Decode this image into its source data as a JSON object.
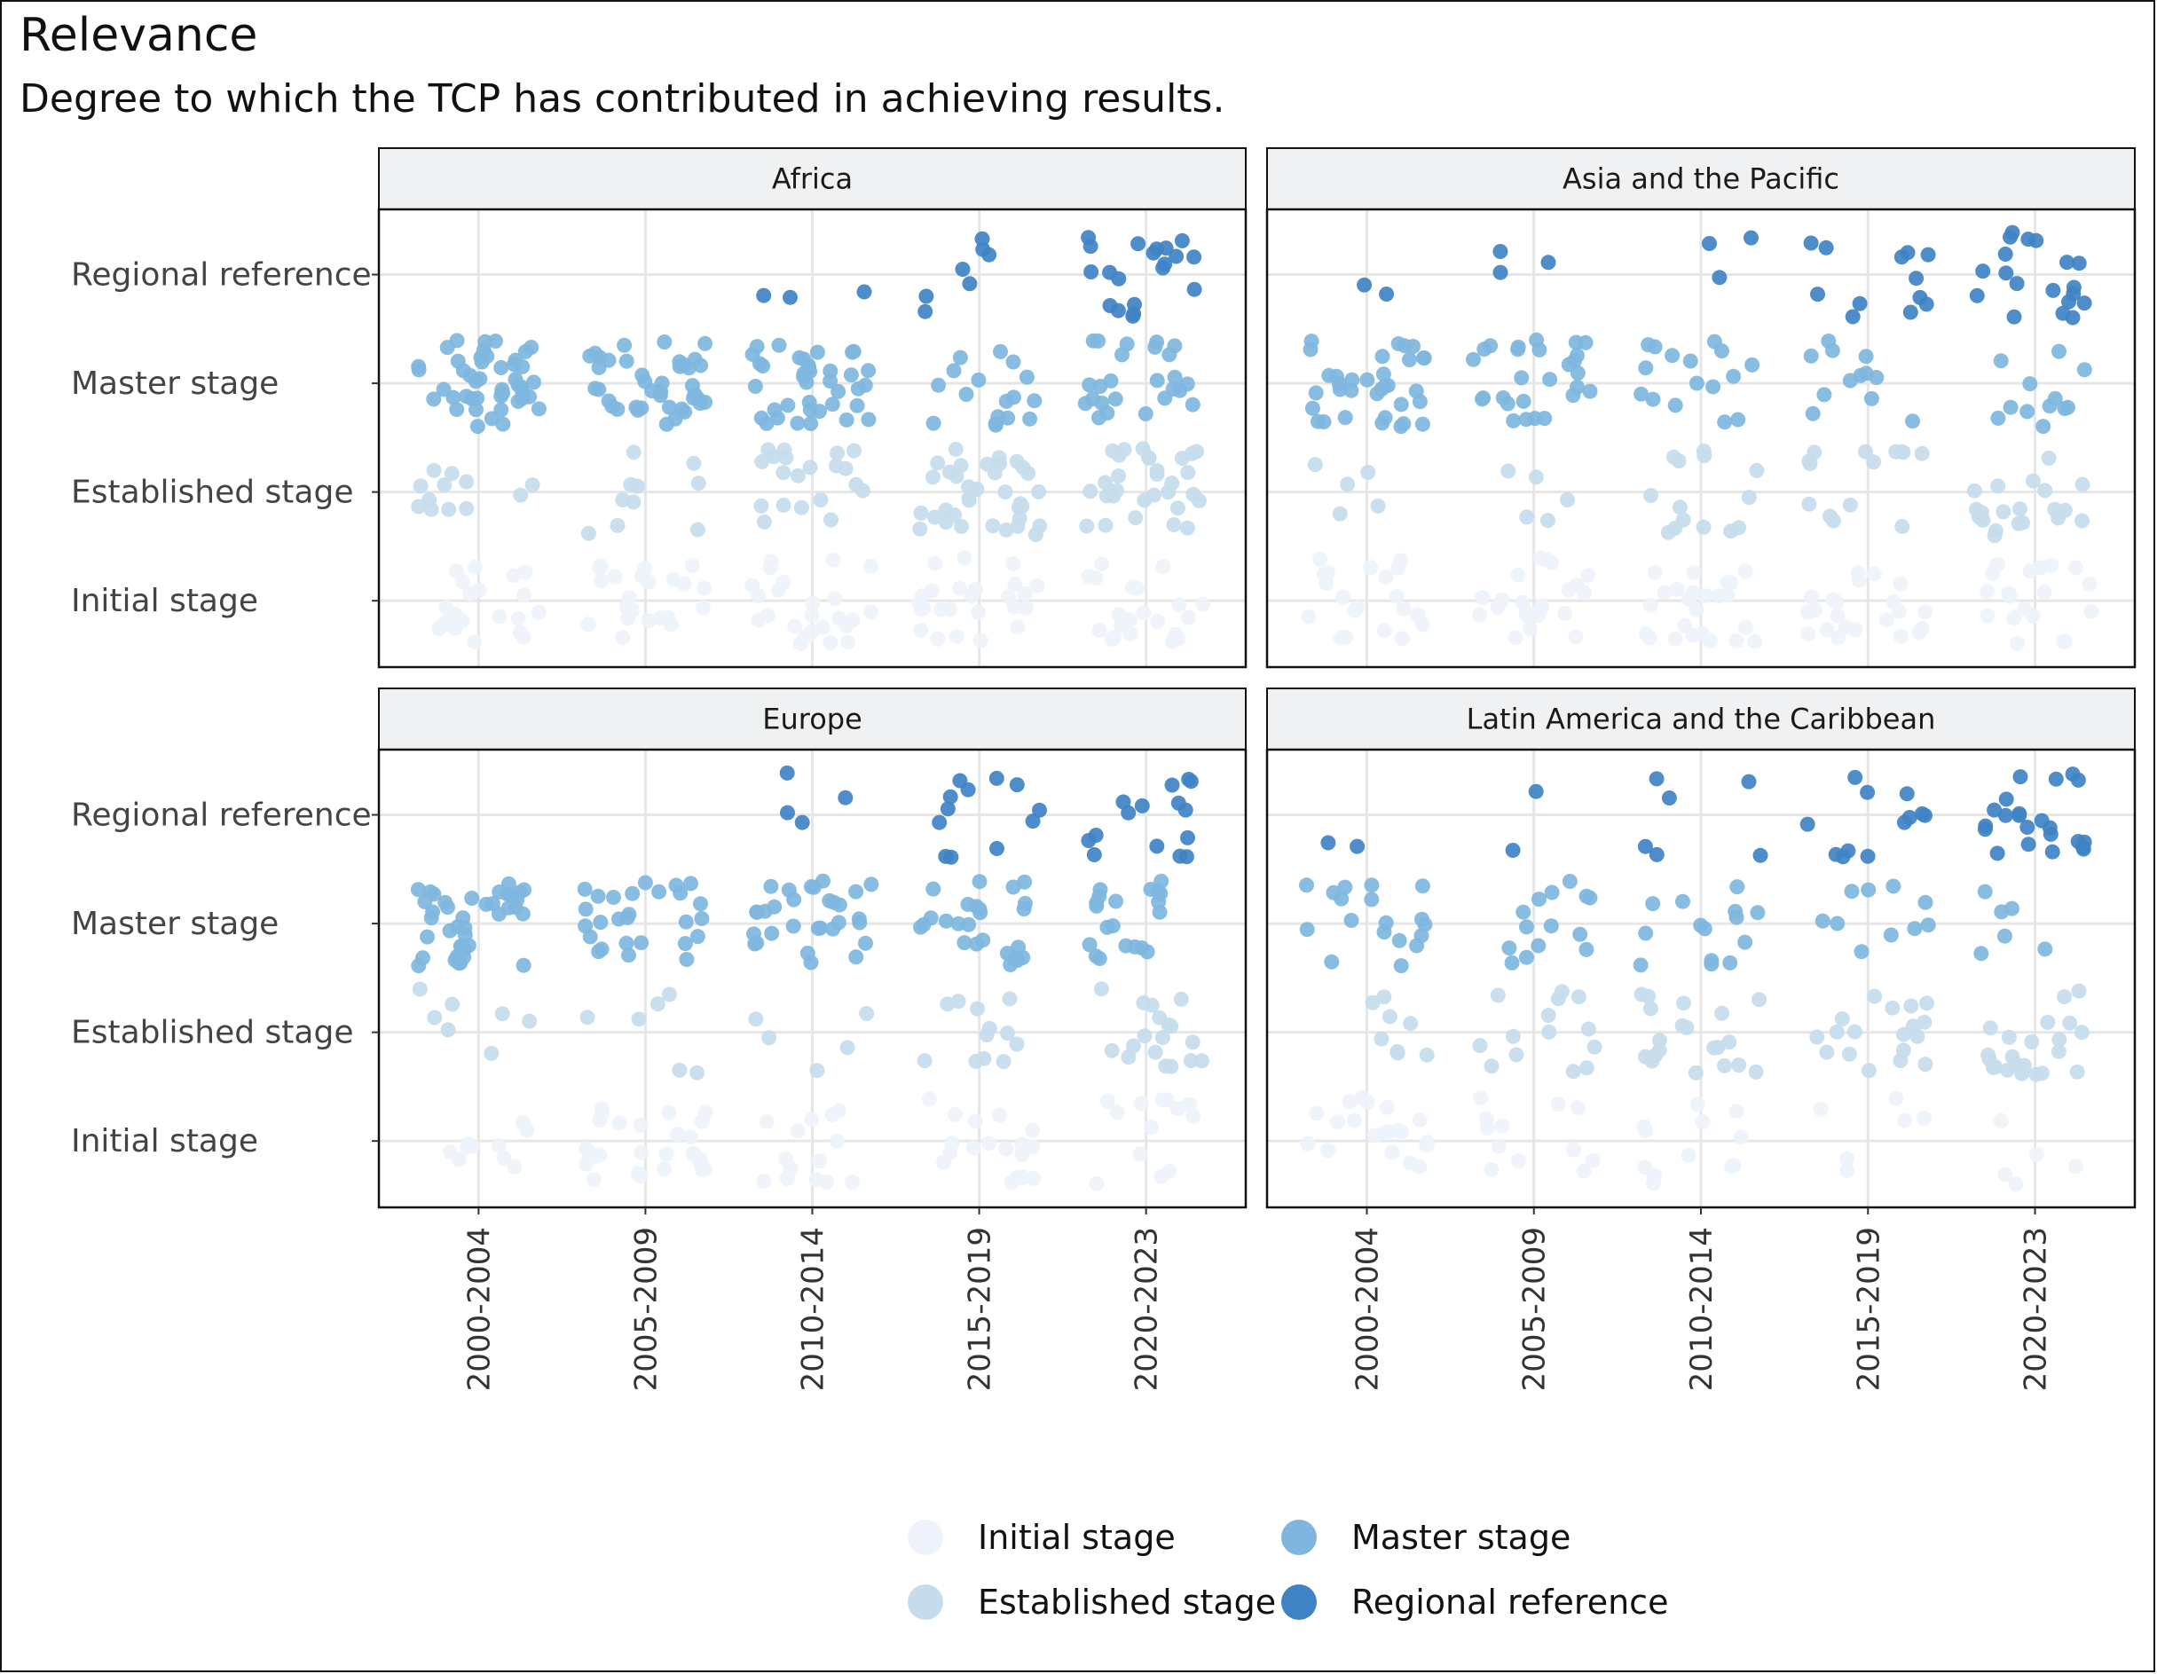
{
  "title": "Relevance",
  "subtitle": "Degree to which the TCP has contributed in achieving results.",
  "chart_data": {
    "type": "scatter",
    "subtype": "jittered strip plot, faceted",
    "x_categories": [
      "2000-2004",
      "2005-2009",
      "2010-2014",
      "2015-2019",
      "2020-2023"
    ],
    "y_categories": [
      "Initial stage",
      "Established stage",
      "Master stage",
      "Regional reference"
    ],
    "legend": {
      "position": "bottom",
      "entries": [
        {
          "label": "Initial stage",
          "color": "#eef3fb"
        },
        {
          "label": "Established stage",
          "color": "#c6dcec"
        },
        {
          "label": "Master stage",
          "color": "#7eb6de"
        },
        {
          "label": "Regional reference",
          "color": "#3f83c4"
        }
      ]
    },
    "grid": true,
    "facets": [
      {
        "region": "Africa",
        "counts": [
          [
            22,
            12,
            45,
            0
          ],
          [
            22,
            10,
            40,
            0
          ],
          [
            25,
            20,
            38,
            3
          ],
          [
            26,
            35,
            17,
            7
          ],
          [
            22,
            30,
            25,
            20
          ]
        ]
      },
      {
        "region": "Asia and the Pacific",
        "counts": [
          [
            20,
            5,
            34,
            2
          ],
          [
            22,
            5,
            27,
            3
          ],
          [
            24,
            14,
            16,
            3
          ],
          [
            22,
            14,
            12,
            12
          ],
          [
            20,
            20,
            12,
            19
          ]
        ]
      },
      {
        "region": "Europe",
        "counts": [
          [
            10,
            7,
            40,
            0
          ],
          [
            26,
            6,
            27,
            0
          ],
          [
            14,
            5,
            30,
            4
          ],
          [
            18,
            12,
            25,
            12
          ],
          [
            14,
            18,
            20,
            15
          ]
        ]
      },
      {
        "region": "Latin America and the Caribbean",
        "counts": [
          [
            20,
            8,
            18,
            2
          ],
          [
            12,
            14,
            14,
            2
          ],
          [
            12,
            20,
            14,
            6
          ],
          [
            6,
            18,
            10,
            12
          ],
          [
            5,
            22,
            6,
            22
          ]
        ]
      }
    ]
  }
}
